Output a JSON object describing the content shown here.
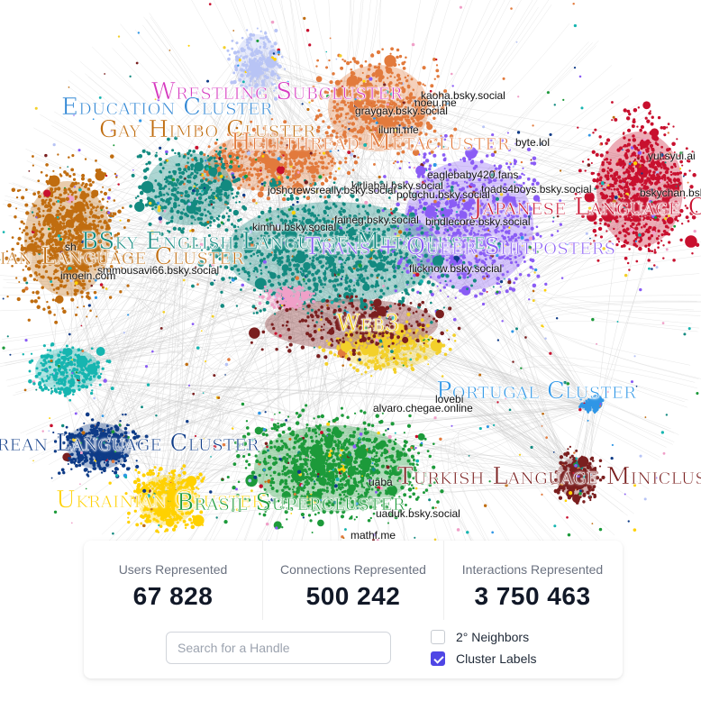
{
  "graph": {
    "cluster_labels": [
      {
        "text": "Wrestling Subcluster",
        "color": "#d63bc0"
      },
      {
        "text": "Education Cluster",
        "color": "#2f86d4"
      },
      {
        "text": "Gay Himbo Cluster",
        "color": "#c06d10"
      },
      {
        "text": "Hellthread Metacluster",
        "color": "#e27a3c"
      },
      {
        "text": "Japanese Language Cluster",
        "color": "#c8102e"
      },
      {
        "text": "BSky English Language Metacluster",
        "color": "#138a80"
      },
      {
        "text": "Trans + Queer Shitposters",
        "color": "#8a5cf5"
      },
      {
        "text": "Persian Language Cluster",
        "color": "#c06d10"
      },
      {
        "text": "Web3",
        "color": "#f3d02a"
      },
      {
        "text": "Portugal Cluster",
        "color": "#2f96e6"
      },
      {
        "text": "Korean Language Cluster",
        "color": "#0e3b87"
      },
      {
        "text": "Turkish Language Minicluster",
        "color": "#7a1f1f"
      },
      {
        "text": "Ukrainian Cluster",
        "color": "#ffd100"
      },
      {
        "text": "Brasil Supercluster",
        "color": "#1c9a3a"
      }
    ],
    "handle_labels": [
      "kaoha.bsky.social",
      "noeu.me",
      "graygay.bsky.social",
      "ilumi.me",
      "byte.lol",
      "yui.syui.ai",
      "eaglebaby420.fans",
      "kirliabai.bsky.social",
      "joshcrewsreally.bsky.social",
      "toads4boys.bsky.social",
      "potgchu.bsky.social",
      "bskychan.bsky.social",
      "faineg.bsky.social",
      "kimhu.bsky.social",
      "bindlecore.bsky.social",
      "sh",
      "smmousavi66.bsky.social",
      "imoein.com",
      "flicknow.bsky.social",
      "alvaro.chegae.online",
      "lovebi",
      "uaba",
      "uaduk.bsky.social",
      "mathf.me"
    ],
    "cluster_colors": [
      "#c06d10",
      "#8a5cf5",
      "#138a80",
      "#e27a3c",
      "#c8102e",
      "#1c9a3a",
      "#0e3b87",
      "#ffd100",
      "#7a1f1f",
      "#2f96e6",
      "#f0a0c8",
      "#b8c4f5",
      "#f3d02a",
      "#16b5b0"
    ]
  },
  "stats": {
    "users_label": "Users Represented",
    "users_value": "67 828",
    "connections_label": "Connections Represented",
    "connections_value": "500 242",
    "interactions_label": "Interactions Represented",
    "interactions_value": "3 750 463"
  },
  "controls": {
    "search_placeholder": "Search for a Handle",
    "search_value": "",
    "neighbors_label": "2° Neighbors",
    "neighbors_checked": false,
    "cluster_labels_label": "Cluster Labels",
    "cluster_labels_checked": true
  }
}
